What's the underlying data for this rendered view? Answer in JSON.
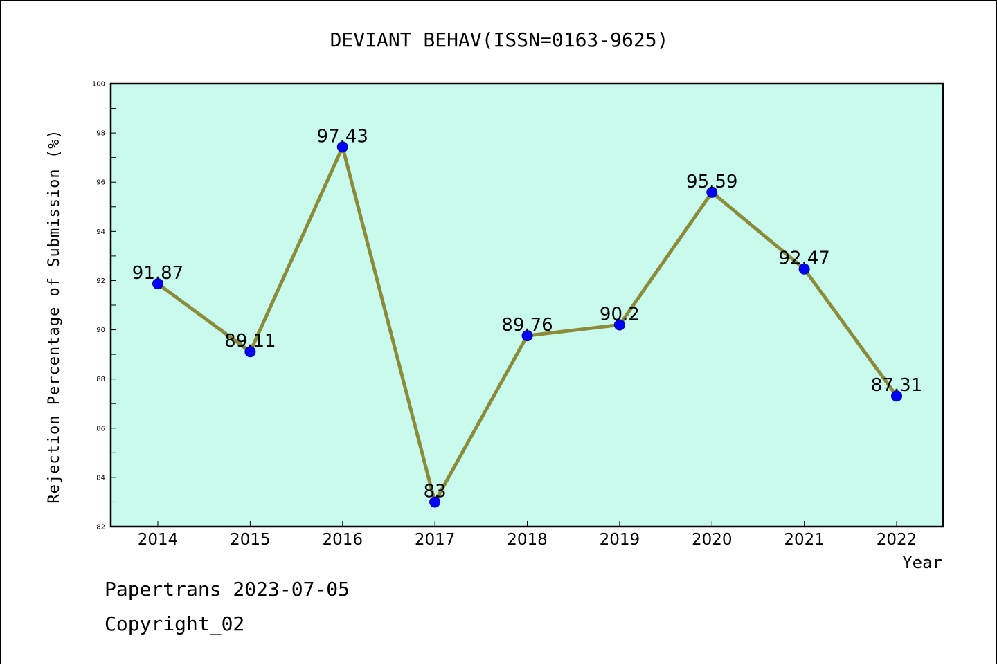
{
  "chart_data": {
    "type": "line",
    "title": "DEVIANT BEHAV(ISSN=0163-9625)",
    "xlabel": "Year",
    "ylabel": "Rejection Percentage of Submission (%)",
    "categories": [
      "2014",
      "2015",
      "2016",
      "2017",
      "2018",
      "2019",
      "2020",
      "2021",
      "2022"
    ],
    "series": [
      {
        "values": [
          91.87,
          89.11,
          97.43,
          83,
          89.76,
          90.2,
          95.59,
          92.47,
          87.31
        ],
        "labels": [
          "91.87",
          "89.11",
          "97.43",
          "83",
          "89.76",
          "90.2",
          "95.59",
          "92.47",
          "87.31"
        ],
        "line_color": "#8b8b3a",
        "marker_color": "#0000ff"
      }
    ],
    "ylim": [
      82,
      100
    ],
    "yticks": [
      "82",
      "84",
      "86",
      "88",
      "90",
      "92",
      "94",
      "96",
      "98",
      "100"
    ],
    "plot_background": "#c8fbee",
    "grid": false,
    "legend": "none"
  },
  "footer": {
    "line1": "Papertrans 2023-07-05",
    "line2": "Copyright_02"
  }
}
